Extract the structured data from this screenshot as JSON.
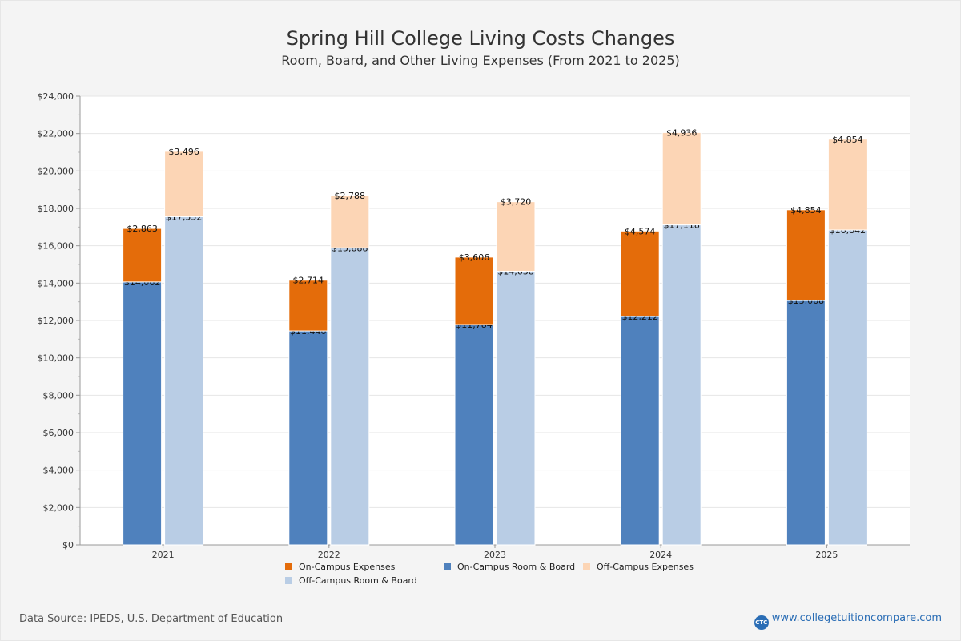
{
  "chart_data": {
    "type": "bar",
    "stacking": "stacked",
    "title": "Spring Hill College Living Costs Changes",
    "subtitle": "Room, Board, and Other Living Expenses (From 2021 to 2025)",
    "xlabel": "",
    "ylabel": "",
    "ylim": [
      0,
      24000
    ],
    "ytick_step": 2000,
    "ytick_labels": [
      "$0",
      "$2,000",
      "$4,000",
      "$6,000",
      "$8,000",
      "$10,000",
      "$12,000",
      "$14,000",
      "$16,000",
      "$18,000",
      "$20,000",
      "$22,000",
      "$24,000"
    ],
    "grid": true,
    "legend_position": "bottom",
    "categories": [
      "2021",
      "2022",
      "2023",
      "2024",
      "2025"
    ],
    "series": [
      {
        "name": "On-Campus Room & Board",
        "stack": "on",
        "color": "#4f81bd",
        "values": [
          14062,
          11440,
          11784,
          12212,
          13068
        ],
        "labels": [
          "$14,062",
          "$11,440",
          "$11,784",
          "$12,212",
          "$13,068"
        ]
      },
      {
        "name": "On-Campus Expenses",
        "stack": "on",
        "color": "#e46c0a",
        "values": [
          2863,
          2714,
          3606,
          4574,
          4854
        ],
        "labels": [
          "$2,863",
          "$2,714",
          "$3,606",
          "$4,574",
          "$4,854"
        ]
      },
      {
        "name": "Off-Campus Room & Board",
        "stack": "off",
        "color": "#b9cde5",
        "values": [
          17552,
          15888,
          14638,
          17118,
          16842
        ],
        "labels": [
          "$17,552",
          "$15,888",
          "$14,638",
          "$17,118",
          "$16,842"
        ]
      },
      {
        "name": "Off-Campus Expenses",
        "stack": "off",
        "color": "#fcd5b5",
        "values": [
          3496,
          2788,
          3720,
          4936,
          4854
        ],
        "labels": [
          "$3,496",
          "$2,788",
          "$3,720",
          "$4,936",
          "$4,854"
        ]
      }
    ],
    "legend_order": [
      "On-Campus Expenses",
      "On-Campus Room & Board",
      "Off-Campus Expenses",
      "Off-Campus Room & Board"
    ]
  },
  "footer": {
    "source": "Data Source: IPEDS, U.S. Department of Education",
    "brand_badge": "CTC",
    "brand": "www.collegetuitioncompare.com"
  }
}
